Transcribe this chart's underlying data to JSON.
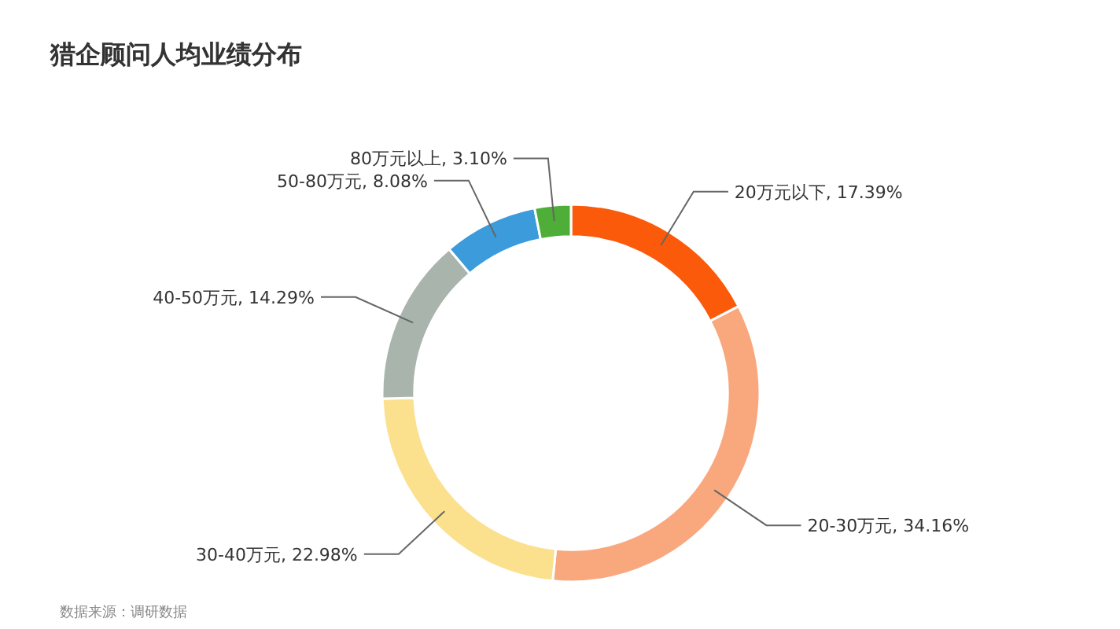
{
  "chart_data": {
    "type": "donut",
    "title": "猎企顾问人均业绩分布",
    "categories": [
      "20万元以下",
      "20-30万元",
      "30-40万元",
      "40-50万元",
      "50-80万元",
      "80万元以上"
    ],
    "values": [
      17.39,
      34.16,
      22.98,
      14.29,
      8.08,
      3.1
    ],
    "value_labels": [
      "17.39%",
      "34.16%",
      "22.98%",
      "14.29%",
      "8.08%",
      "3.10%"
    ],
    "colors": [
      "#fa5a0a",
      "#f9a87e",
      "#fbe08e",
      "#a9b4ad",
      "#3b9bdb",
      "#4fae37"
    ],
    "annotations": [
      "数据来源：调研数据"
    ],
    "legend": false
  }
}
